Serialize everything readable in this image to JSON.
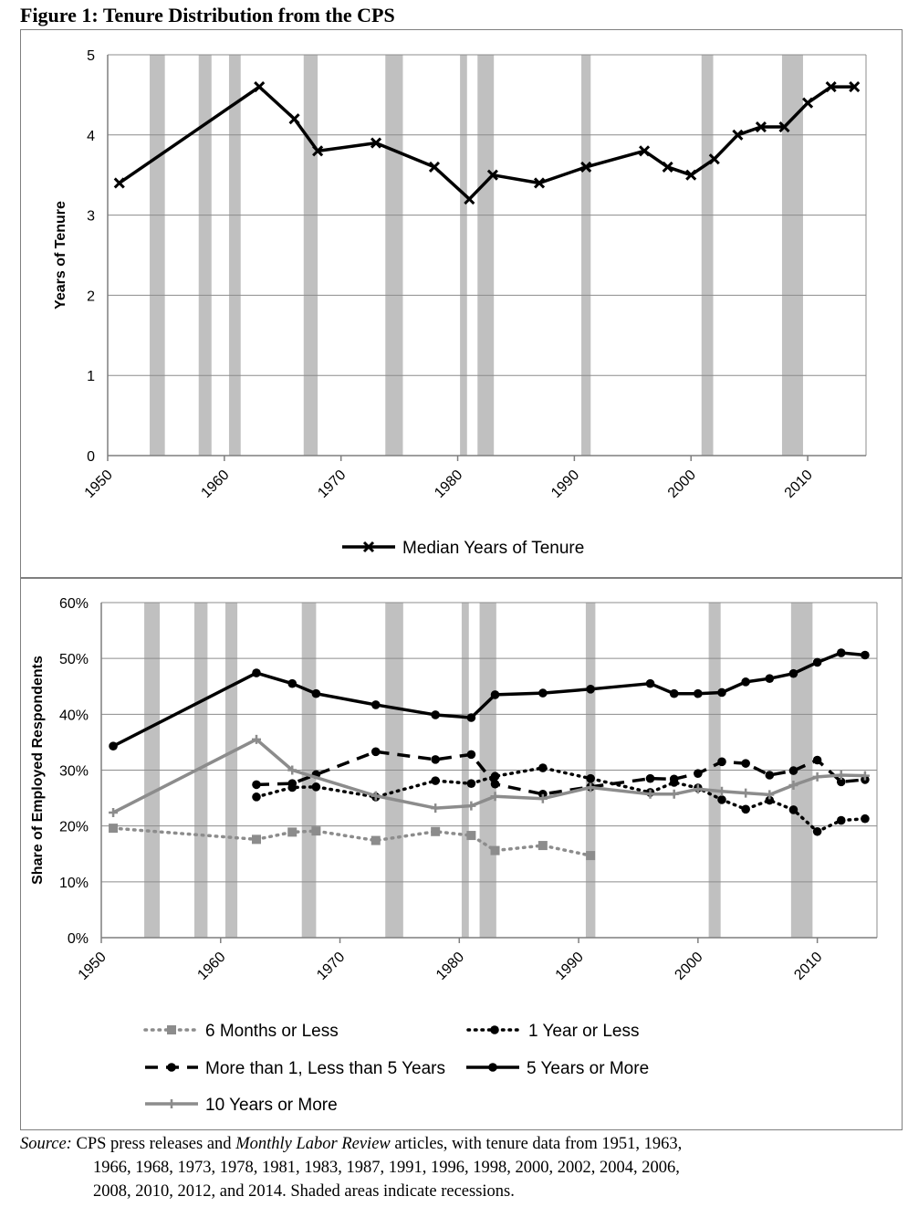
{
  "figure_title": "Figure 1: Tenure Distribution from the CPS",
  "source": {
    "label": "Source:",
    "text_before": "CPS press releases and",
    "journal": "Monthly Labor Review",
    "text_after": "articles, with tenure data from 1951, 1963,",
    "line2": "1966, 1968, 1973, 1978, 1981, 1983, 1987, 1991, 1996, 1998, 2000, 2002, 2004, 2006,",
    "line3": "2008, 2010, 2012, and 2014. Shaded areas indicate recessions."
  },
  "colors": {
    "recession": "#c0c0c0",
    "black": "#000000",
    "gray": "#8c8c8c",
    "grid": "#8c8c8c"
  },
  "chart_data": [
    {
      "type": "line",
      "ylabel": "Years of Tenure",
      "xlim": [
        1950,
        2015
      ],
      "ylim": [
        0,
        5
      ],
      "x_ticks": [
        1950,
        1960,
        1970,
        1980,
        1990,
        2000,
        2010
      ],
      "y_ticks": [
        0,
        1,
        2,
        3,
        4,
        5
      ],
      "y_tick_labels": [
        "0",
        "1",
        "2",
        "3",
        "4",
        "5"
      ],
      "grid": true,
      "legend_position": "bottom",
      "recessions": [
        [
          1953.6,
          1954.9
        ],
        [
          1957.8,
          1958.9
        ],
        [
          1960.4,
          1961.4
        ],
        [
          1966.8,
          1968
        ],
        [
          1973.8,
          1975.3
        ],
        [
          1980.2,
          1980.8
        ],
        [
          1981.7,
          1983.1
        ],
        [
          1990.6,
          1991.4
        ],
        [
          2000.9,
          2001.9
        ],
        [
          2007.8,
          2009.6
        ]
      ],
      "series": [
        {
          "name": "Median Years of Tenure",
          "style": "solid-black-x",
          "x": [
            1951,
            1963,
            1966,
            1968,
            1973,
            1978,
            1981,
            1983,
            1987,
            1991,
            1996,
            1998,
            2000,
            2002,
            2004,
            2006,
            2008,
            2010,
            2012,
            2014
          ],
          "y": [
            3.4,
            4.6,
            4.2,
            3.8,
            3.9,
            3.6,
            3.2,
            3.5,
            3.4,
            3.6,
            3.8,
            3.6,
            3.5,
            3.7,
            4.0,
            4.1,
            4.1,
            4.4,
            4.6,
            4.6
          ]
        }
      ]
    },
    {
      "type": "line",
      "ylabel": "Share of Employed Respondents",
      "xlim": [
        1950,
        2015
      ],
      "ylim": [
        0,
        60
      ],
      "x_ticks": [
        1950,
        1960,
        1970,
        1980,
        1990,
        2000,
        2010
      ],
      "y_ticks": [
        0,
        10,
        20,
        30,
        40,
        50,
        60
      ],
      "y_tick_labels": [
        "0%",
        "10%",
        "20%",
        "30%",
        "40%",
        "50%",
        "60%"
      ],
      "grid": true,
      "legend_position": "bottom",
      "recessions": [
        [
          1953.6,
          1954.9
        ],
        [
          1957.8,
          1958.9
        ],
        [
          1960.4,
          1961.4
        ],
        [
          1966.8,
          1968
        ],
        [
          1973.8,
          1975.3
        ],
        [
          1980.2,
          1980.8
        ],
        [
          1981.7,
          1983.1
        ],
        [
          1990.6,
          1991.4
        ],
        [
          2000.9,
          2001.9
        ],
        [
          2007.8,
          2009.6
        ]
      ],
      "series": [
        {
          "name": "6 Months or Less",
          "style": "dotted-gray-square",
          "x": [
            1951,
            1963,
            1966,
            1968,
            1973,
            1978,
            1981,
            1983,
            1987,
            1991
          ],
          "y": [
            19.6,
            17.6,
            18.9,
            19.1,
            17.4,
            19.0,
            18.3,
            15.6,
            16.5,
            14.7
          ]
        },
        {
          "name": "1 Year or Less",
          "style": "dotted-black-circle",
          "x": [
            1963,
            1966,
            1968,
            1973,
            1978,
            1981,
            1983,
            1987,
            1991,
            1996,
            1998,
            2000,
            2002,
            2004,
            2006,
            2008,
            2010,
            2012,
            2014
          ],
          "y": [
            25.2,
            26.9,
            27.0,
            25.2,
            28.1,
            27.6,
            28.9,
            30.4,
            28.5,
            26.0,
            27.8,
            26.8,
            24.7,
            23.0,
            24.6,
            22.9,
            19.0,
            21.0,
            21.3
          ]
        },
        {
          "name": "More than 1, Less than 5 Years",
          "style": "dashed-black-circle",
          "x": [
            1963,
            1966,
            1968,
            1973,
            1978,
            1981,
            1983,
            1987,
            1991,
            1996,
            1998,
            2000,
            2002,
            2004,
            2006,
            2008,
            2010,
            2012,
            2014
          ],
          "y": [
            27.4,
            27.6,
            29.2,
            33.3,
            31.9,
            32.8,
            27.5,
            25.7,
            27.0,
            28.5,
            28.4,
            29.4,
            31.5,
            31.2,
            29.1,
            29.9,
            31.8,
            27.9,
            28.3
          ]
        },
        {
          "name": "5 Years or More",
          "style": "solid-black-circle",
          "x": [
            1951,
            1963,
            1966,
            1968,
            1973,
            1978,
            1981,
            1983,
            1987,
            1991,
            1996,
            1998,
            2000,
            2002,
            2004,
            2006,
            2008,
            2010,
            2012,
            2014
          ],
          "y": [
            34.3,
            47.4,
            45.5,
            43.7,
            41.7,
            39.9,
            39.4,
            43.5,
            43.8,
            44.5,
            45.5,
            43.7,
            43.7,
            43.9,
            45.8,
            46.4,
            47.3,
            49.3,
            51.0,
            50.6
          ]
        },
        {
          "name": "10 Years or More",
          "style": "solid-gray-plus",
          "x": [
            1951,
            1963,
            1966,
            1973,
            1978,
            1981,
            1983,
            1987,
            1991,
            1996,
            1998,
            2000,
            2002,
            2004,
            2006,
            2008,
            2010,
            2012,
            2014
          ],
          "y": [
            22.4,
            35.5,
            30.0,
            25.4,
            23.2,
            23.6,
            25.3,
            24.9,
            26.9,
            25.7,
            25.7,
            26.6,
            26.2,
            25.9,
            25.6,
            27.3,
            28.8,
            29.1,
            29.0
          ]
        }
      ]
    }
  ]
}
